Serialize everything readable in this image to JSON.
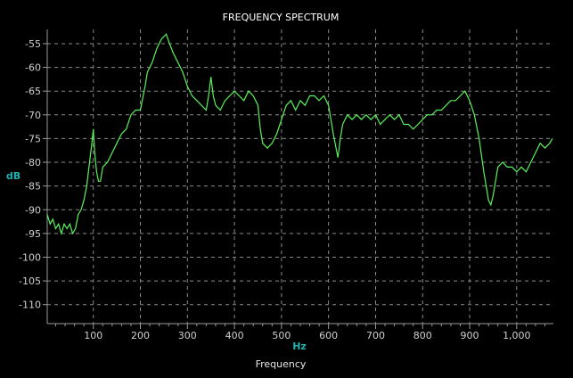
{
  "chart_data": {
    "type": "line",
    "title": "FREQUENCY SPECTRUM",
    "xlabel_unit": "Hz",
    "xlabel": "Frequency",
    "ylabel_unit": "dB",
    "xlim": [
      2,
      1078
    ],
    "ylim": [
      -114,
      -52
    ],
    "x_ticks": [
      100,
      200,
      300,
      400,
      500,
      600,
      700,
      800,
      900,
      1000
    ],
    "x_tick_labels": [
      "100",
      "200",
      "300",
      "400",
      "500",
      "600",
      "700",
      "800",
      "900",
      "1,000"
    ],
    "y_ticks": [
      -55,
      -60,
      -65,
      -70,
      -75,
      -80,
      -85,
      -90,
      -95,
      -100,
      -105,
      -110
    ],
    "y_tick_labels": [
      "-55",
      "-60",
      "-65",
      "-70",
      "-75",
      "-80",
      "-85",
      "-90",
      "-95",
      "-100",
      "-105",
      "-110"
    ],
    "grid": true,
    "colors": {
      "background": "#000000",
      "trace": "#5cf25c",
      "unit_label": "#22b1b1"
    },
    "series": [
      {
        "x": [
          2,
          8,
          14,
          20,
          26,
          32,
          38,
          44,
          50,
          56,
          62,
          68,
          74,
          80,
          86,
          92,
          97,
          100,
          103,
          107,
          111,
          115,
          120,
          130,
          140,
          150,
          160,
          170,
          180,
          190,
          200,
          210,
          215,
          225,
          235,
          245,
          255,
          262,
          270,
          280,
          290,
          300,
          310,
          320,
          330,
          340,
          345,
          350,
          355,
          360,
          370,
          380,
          390,
          400,
          410,
          420,
          430,
          440,
          450,
          455,
          460,
          470,
          480,
          490,
          500,
          510,
          520,
          530,
          540,
          550,
          560,
          570,
          580,
          590,
          600,
          610,
          620,
          625,
          630,
          640,
          650,
          660,
          670,
          680,
          690,
          700,
          710,
          720,
          730,
          740,
          750,
          760,
          770,
          780,
          790,
          800,
          810,
          820,
          830,
          840,
          850,
          860,
          870,
          880,
          890,
          900,
          910,
          920,
          930,
          940,
          945,
          950,
          960,
          970,
          980,
          990,
          1000,
          1010,
          1020,
          1030,
          1040,
          1050,
          1060,
          1070,
          1076
        ],
        "values": [
          -91,
          -93,
          -92,
          -94,
          -93,
          -95,
          -93,
          -94,
          -93,
          -95,
          -94,
          -91,
          -90,
          -88,
          -85,
          -80,
          -76,
          -73,
          -78,
          -82,
          -84,
          -84,
          -81,
          -80,
          -78,
          -76,
          -74,
          -73,
          -70,
          -69,
          -69,
          -64,
          -61,
          -59,
          -56,
          -54,
          -53,
          -55,
          -57,
          -59,
          -61,
          -64,
          -66,
          -67,
          -68,
          -69,
          -66,
          -62,
          -66,
          -68,
          -69,
          -67,
          -66,
          -65,
          -66,
          -67,
          -65,
          -66,
          -68,
          -73,
          -76,
          -77,
          -76,
          -74,
          -71,
          -68,
          -67,
          -69,
          -67,
          -68,
          -66,
          -66,
          -67,
          -66,
          -68,
          -74,
          -79,
          -75,
          -72,
          -70,
          -71,
          -70,
          -71,
          -70,
          -71,
          -70,
          -72,
          -71,
          -70,
          -71,
          -70,
          -72,
          -72,
          -73,
          -72,
          -71,
          -70,
          -70,
          -69,
          -69,
          -68,
          -67,
          -67,
          -66,
          -65,
          -67,
          -70,
          -75,
          -82,
          -88,
          -89,
          -87,
          -81,
          -80,
          -81,
          -81,
          -82,
          -81,
          -82,
          -80,
          -78,
          -76,
          -77,
          -76,
          -75
        ]
      }
    ]
  }
}
